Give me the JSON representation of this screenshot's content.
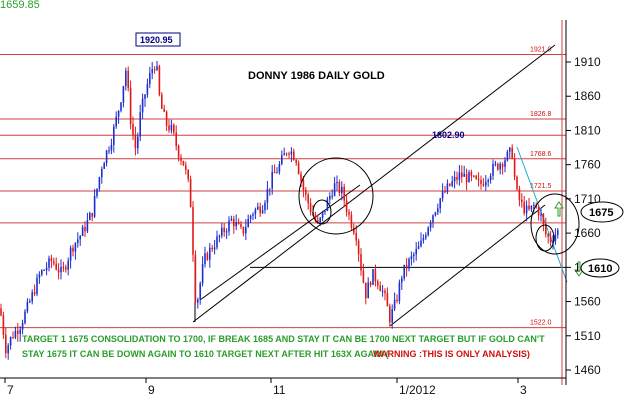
{
  "chart_data": {
    "type": "candlestick",
    "title": "DONNY 1986 DAILY GOLD",
    "corner_label": "1659.85",
    "xlabel": "",
    "ylabel": "",
    "ylim": [
      1440,
      1940
    ],
    "y_ticks": [
      1910,
      1860,
      1810,
      1760,
      1710,
      1660,
      1610,
      1560,
      1510,
      1460
    ],
    "x_ticks": [
      "7",
      "9",
      "11",
      "1/2012",
      "3"
    ],
    "current_price_label": "1675",
    "support_label": "1610",
    "fib_levels": [
      {
        "label": "1921.0",
        "value": 1921.0
      },
      {
        "label": "1826.8",
        "value": 1826.8
      },
      {
        "label": "1768.6",
        "value": 1768.6
      },
      {
        "label": "1721.5",
        "value": 1721.5
      },
      {
        "label": "1522.0",
        "value": 1522.0
      }
    ],
    "extra_levels": [
      1802.9,
      1675,
      1610
    ],
    "peak_labels": [
      {
        "label": "1920.95",
        "value": 1920.95
      },
      {
        "label": "1802.90",
        "value": 1802.9
      }
    ],
    "annotation_lines": [
      "TARGET 1 1675 CONSOLIDATION TO 1700, IF BREAK 1685 AND STAY IT CAN BE 1700 NEXT TARGET BUT IF GOLD CAN'T",
      "STAY 1675 IT CAN BE DOWN AGAIN TO 1610 TARGET NEXT AFTER HIT 163X AGAIN (",
      "WARNING :THIS IS ONLY ANALYSIS)"
    ],
    "close_path": [
      [
        0,
        1550
      ],
      [
        6,
        1490
      ],
      [
        12,
        1510
      ],
      [
        20,
        1525
      ],
      [
        30,
        1560
      ],
      [
        40,
        1600
      ],
      [
        52,
        1620
      ],
      [
        62,
        1600
      ],
      [
        72,
        1640
      ],
      [
        82,
        1660
      ],
      [
        92,
        1690
      ],
      [
        102,
        1760
      ],
      [
        112,
        1800
      ],
      [
        120,
        1850
      ],
      [
        126,
        1900
      ],
      [
        131,
        1820
      ],
      [
        136,
        1780
      ],
      [
        140,
        1830
      ],
      [
        146,
        1870
      ],
      [
        152,
        1900
      ],
      [
        156,
        1910
      ],
      [
        160,
        1850
      ],
      [
        166,
        1820
      ],
      [
        172,
        1810
      ],
      [
        178,
        1780
      ],
      [
        184,
        1760
      ],
      [
        190,
        1720
      ],
      [
        196,
        1550
      ],
      [
        204,
        1620
      ],
      [
        212,
        1640
      ],
      [
        222,
        1660
      ],
      [
        232,
        1680
      ],
      [
        242,
        1660
      ],
      [
        252,
        1690
      ],
      [
        262,
        1700
      ],
      [
        272,
        1740
      ],
      [
        280,
        1760
      ],
      [
        288,
        1785
      ],
      [
        296,
        1770
      ],
      [
        304,
        1720
      ],
      [
        312,
        1690
      ],
      [
        318,
        1670
      ],
      [
        326,
        1700
      ],
      [
        334,
        1730
      ],
      [
        342,
        1720
      ],
      [
        350,
        1680
      ],
      [
        356,
        1660
      ],
      [
        362,
        1600
      ],
      [
        366,
        1570
      ],
      [
        372,
        1600
      ],
      [
        378,
        1590
      ],
      [
        384,
        1570
      ],
      [
        390,
        1535
      ],
      [
        396,
        1560
      ],
      [
        402,
        1600
      ],
      [
        410,
        1620
      ],
      [
        420,
        1640
      ],
      [
        430,
        1680
      ],
      [
        440,
        1710
      ],
      [
        450,
        1730
      ],
      [
        460,
        1745
      ],
      [
        470,
        1740
      ],
      [
        480,
        1730
      ],
      [
        490,
        1750
      ],
      [
        498,
        1760
      ],
      [
        506,
        1770
      ],
      [
        512,
        1780
      ],
      [
        516,
        1720
      ],
      [
        522,
        1700
      ],
      [
        528,
        1690
      ],
      [
        534,
        1700
      ],
      [
        540,
        1690
      ],
      [
        545,
        1660
      ],
      [
        550,
        1650
      ],
      [
        556,
        1660
      ],
      [
        560,
        1665
      ]
    ]
  }
}
